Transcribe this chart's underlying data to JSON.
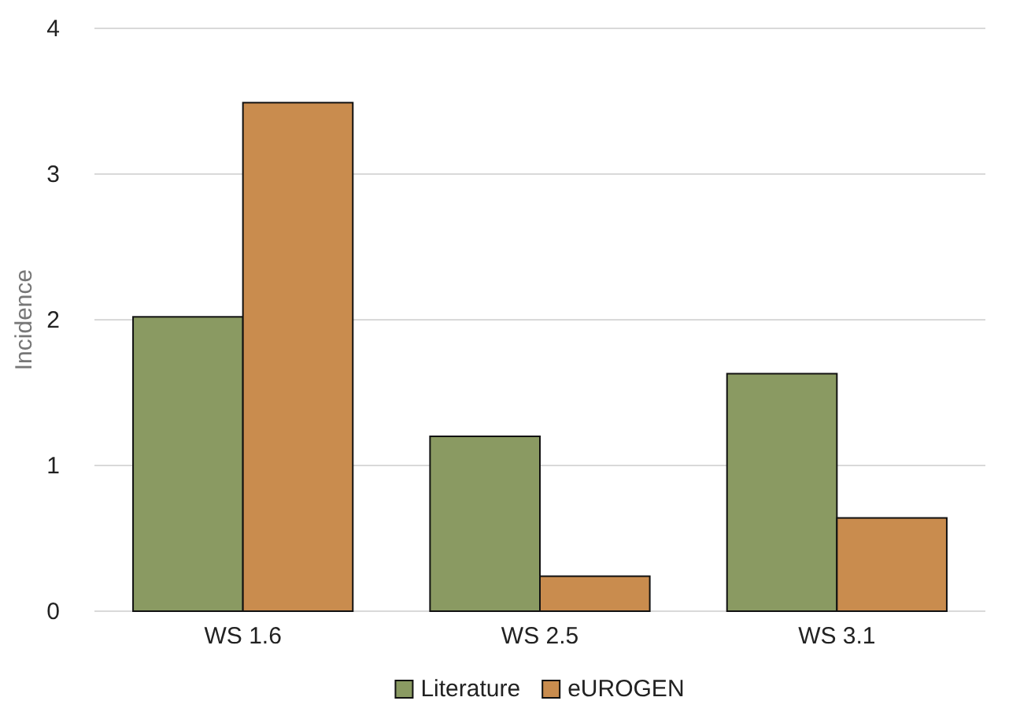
{
  "chart_data": {
    "type": "bar",
    "ylabel": "Incidence",
    "categories": [
      "WS 1.6",
      "WS 2.5",
      "WS 3.1"
    ],
    "series": [
      {
        "name": "Literature",
        "color": "#8a9a62",
        "values": [
          2.02,
          1.2,
          1.63
        ]
      },
      {
        "name": "eUROGEN",
        "color": "#c98c4e",
        "values": [
          3.49,
          0.24,
          0.64
        ]
      }
    ],
    "ylim": [
      0,
      4
    ],
    "yticks": [
      0,
      1,
      2,
      3,
      4
    ],
    "grid": "y",
    "legend": "bottom"
  }
}
